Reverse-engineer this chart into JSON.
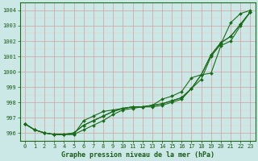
{
  "x": [
    0,
    1,
    2,
    3,
    4,
    5,
    6,
    7,
    8,
    9,
    10,
    11,
    12,
    13,
    14,
    15,
    16,
    17,
    18,
    19,
    20,
    21,
    22,
    23
  ],
  "line1": [
    996.6,
    996.2,
    996.0,
    995.9,
    995.9,
    995.9,
    996.8,
    997.1,
    997.4,
    997.5,
    997.6,
    997.7,
    997.7,
    997.7,
    997.8,
    998.0,
    998.2,
    998.9,
    999.5,
    1001.0,
    1001.8,
    1003.2,
    1003.8,
    1004.0
  ],
  "line2": [
    996.6,
    996.2,
    996.0,
    995.9,
    995.9,
    996.0,
    996.5,
    996.8,
    997.1,
    997.4,
    997.6,
    997.7,
    997.7,
    997.8,
    997.9,
    998.1,
    998.3,
    998.9,
    999.8,
    1001.1,
    1001.9,
    1002.3,
    1003.1,
    1003.9
  ],
  "line3": [
    996.6,
    996.2,
    996.0,
    995.9,
    995.9,
    996.0,
    996.5,
    996.8,
    997.1,
    997.4,
    997.6,
    997.7,
    997.7,
    997.8,
    997.9,
    998.1,
    998.3,
    998.9,
    999.8,
    1001.1,
    1001.9,
    1002.3,
    1003.1,
    1003.9
  ],
  "line4": [
    996.6,
    996.2,
    996.0,
    995.9,
    995.9,
    995.9,
    996.2,
    996.5,
    996.8,
    997.2,
    997.5,
    997.6,
    997.7,
    997.8,
    998.2,
    998.4,
    998.7,
    999.6,
    999.8,
    999.9,
    1001.7,
    1002.0,
    1003.0,
    1003.9
  ],
  "ylim": [
    995.5,
    1004.5
  ],
  "yticks": [
    996,
    997,
    998,
    999,
    1000,
    1001,
    1002,
    1003,
    1004
  ],
  "xticks": [
    0,
    1,
    2,
    3,
    4,
    5,
    6,
    7,
    8,
    9,
    10,
    11,
    12,
    13,
    14,
    15,
    16,
    17,
    18,
    19,
    20,
    21,
    22,
    23
  ],
  "line_color": "#1a6b1a",
  "bg_color": "#cce8e6",
  "grid_color_major": "#d4a0a0",
  "grid_color_minor": "#e8cccc",
  "xlabel": "Graphe pression niveau de la mer (hPa)",
  "tick_color": "#1a5c1a",
  "marker": "D",
  "marker_size": 2.0,
  "line_width": 0.8,
  "tick_fontsize": 5.0,
  "xlabel_fontsize": 6.0
}
